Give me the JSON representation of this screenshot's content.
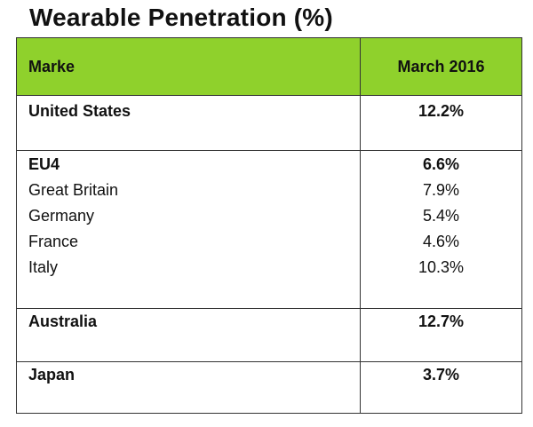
{
  "title": "Wearable Penetration (%)",
  "colors": {
    "header_bg": "#8fd12c",
    "border": "#333333"
  },
  "chart_data": {
    "type": "table",
    "title": "Wearable Penetration (%)",
    "columns": [
      "Marke",
      "March 2016"
    ],
    "rows": [
      {
        "label": "United States",
        "value": "12.2%",
        "bold": true
      },
      {
        "label": "EU4",
        "value": "6.6%",
        "bold": true
      },
      {
        "label": "Great Britain",
        "value": "7.9%",
        "bold": false
      },
      {
        "label": "Germany",
        "value": "5.4%",
        "bold": false
      },
      {
        "label": "France",
        "value": "4.6%",
        "bold": false
      },
      {
        "label": "Italy",
        "value": "10.3%",
        "bold": false
      },
      {
        "label": "Australia",
        "value": "12.7%",
        "bold": true
      },
      {
        "label": "Japan",
        "value": "3.7%",
        "bold": true
      }
    ]
  }
}
